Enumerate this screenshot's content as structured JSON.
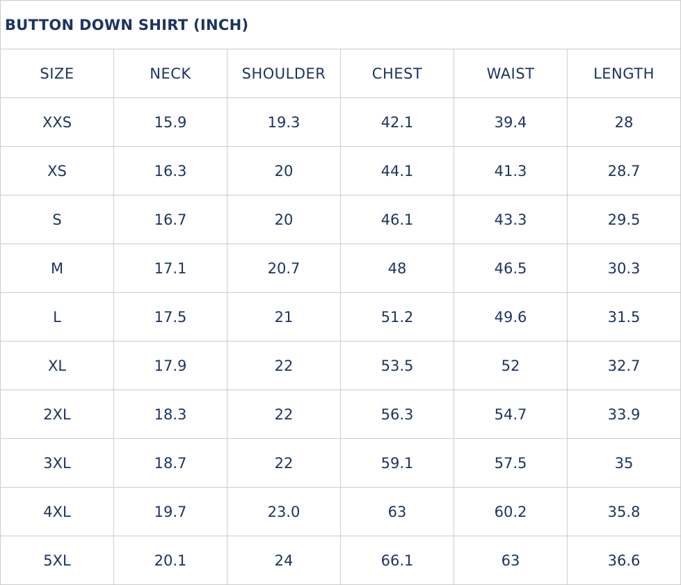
{
  "title": "BUTTON DOWN SHIRT (INCH)",
  "text_color": "#1d3461",
  "columns": [
    "SIZE",
    "NECK",
    "SHOULDER",
    "CHEST",
    "WAIST",
    "LENGTH"
  ],
  "rows": [
    [
      "XXS",
      "15.9",
      "19.3",
      "42.1",
      "39.4",
      "28"
    ],
    [
      "XS",
      "16.3",
      "20",
      "44.1",
      "41.3",
      "28.7"
    ],
    [
      "S",
      "16.7",
      "20",
      "46.1",
      "43.3",
      "29.5"
    ],
    [
      "M",
      "17.1",
      "20.7",
      "48",
      "46.5",
      "30.3"
    ],
    [
      "L",
      "17.5",
      "21",
      "51.2",
      "49.6",
      "31.5"
    ],
    [
      "XL",
      "17.9",
      "22",
      "53.5",
      "52",
      "32.7"
    ],
    [
      "2XL",
      "18.3",
      "22",
      "56.3",
      "54.7",
      "33.9"
    ],
    [
      "3XL",
      "18.7",
      "22",
      "59.1",
      "57.5",
      "35"
    ],
    [
      "4XL",
      "19.7",
      "23.0",
      "63",
      "60.2",
      "35.8"
    ],
    [
      "5XL",
      "20.1",
      "24",
      "66.1",
      "63",
      "36.6"
    ]
  ]
}
